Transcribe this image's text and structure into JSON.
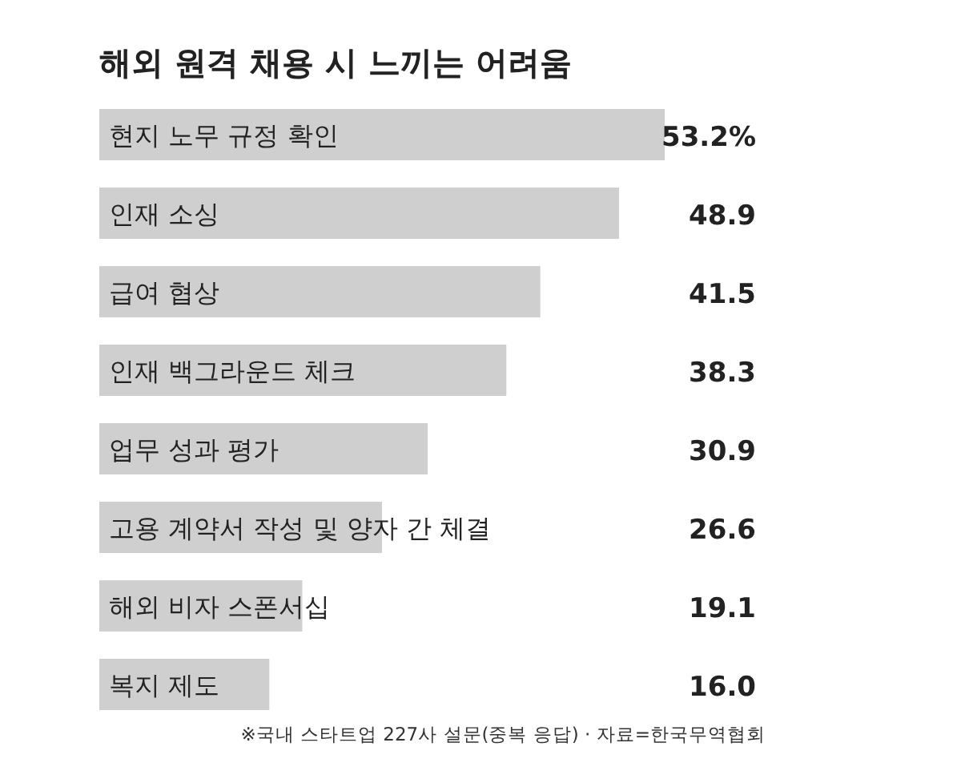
{
  "chart_data": {
    "type": "bar",
    "orientation": "horizontal",
    "title": "해외 원격 채용 시 느끼는 어려움",
    "categories": [
      "현지 노무 규정 확인",
      "인재 소싱",
      "급여 협상",
      "인재 백그라운드 체크",
      "업무 성과 평가",
      "고용 계약서 작성 및 양자 간 체결",
      "해외 비자 스폰서십",
      "복지 제도"
    ],
    "values": [
      53.2,
      48.9,
      41.5,
      38.3,
      30.9,
      26.6,
      19.1,
      16.0
    ],
    "value_labels": [
      "53.2%",
      "48.9",
      "41.5",
      "38.3",
      "30.9",
      "26.6",
      "19.1",
      "16.0"
    ],
    "color": "#cfcfcf",
    "annotations": [
      "※국내 스타트업 227사 설문(중복 응답) · 자료=한국무역협회"
    ]
  }
}
